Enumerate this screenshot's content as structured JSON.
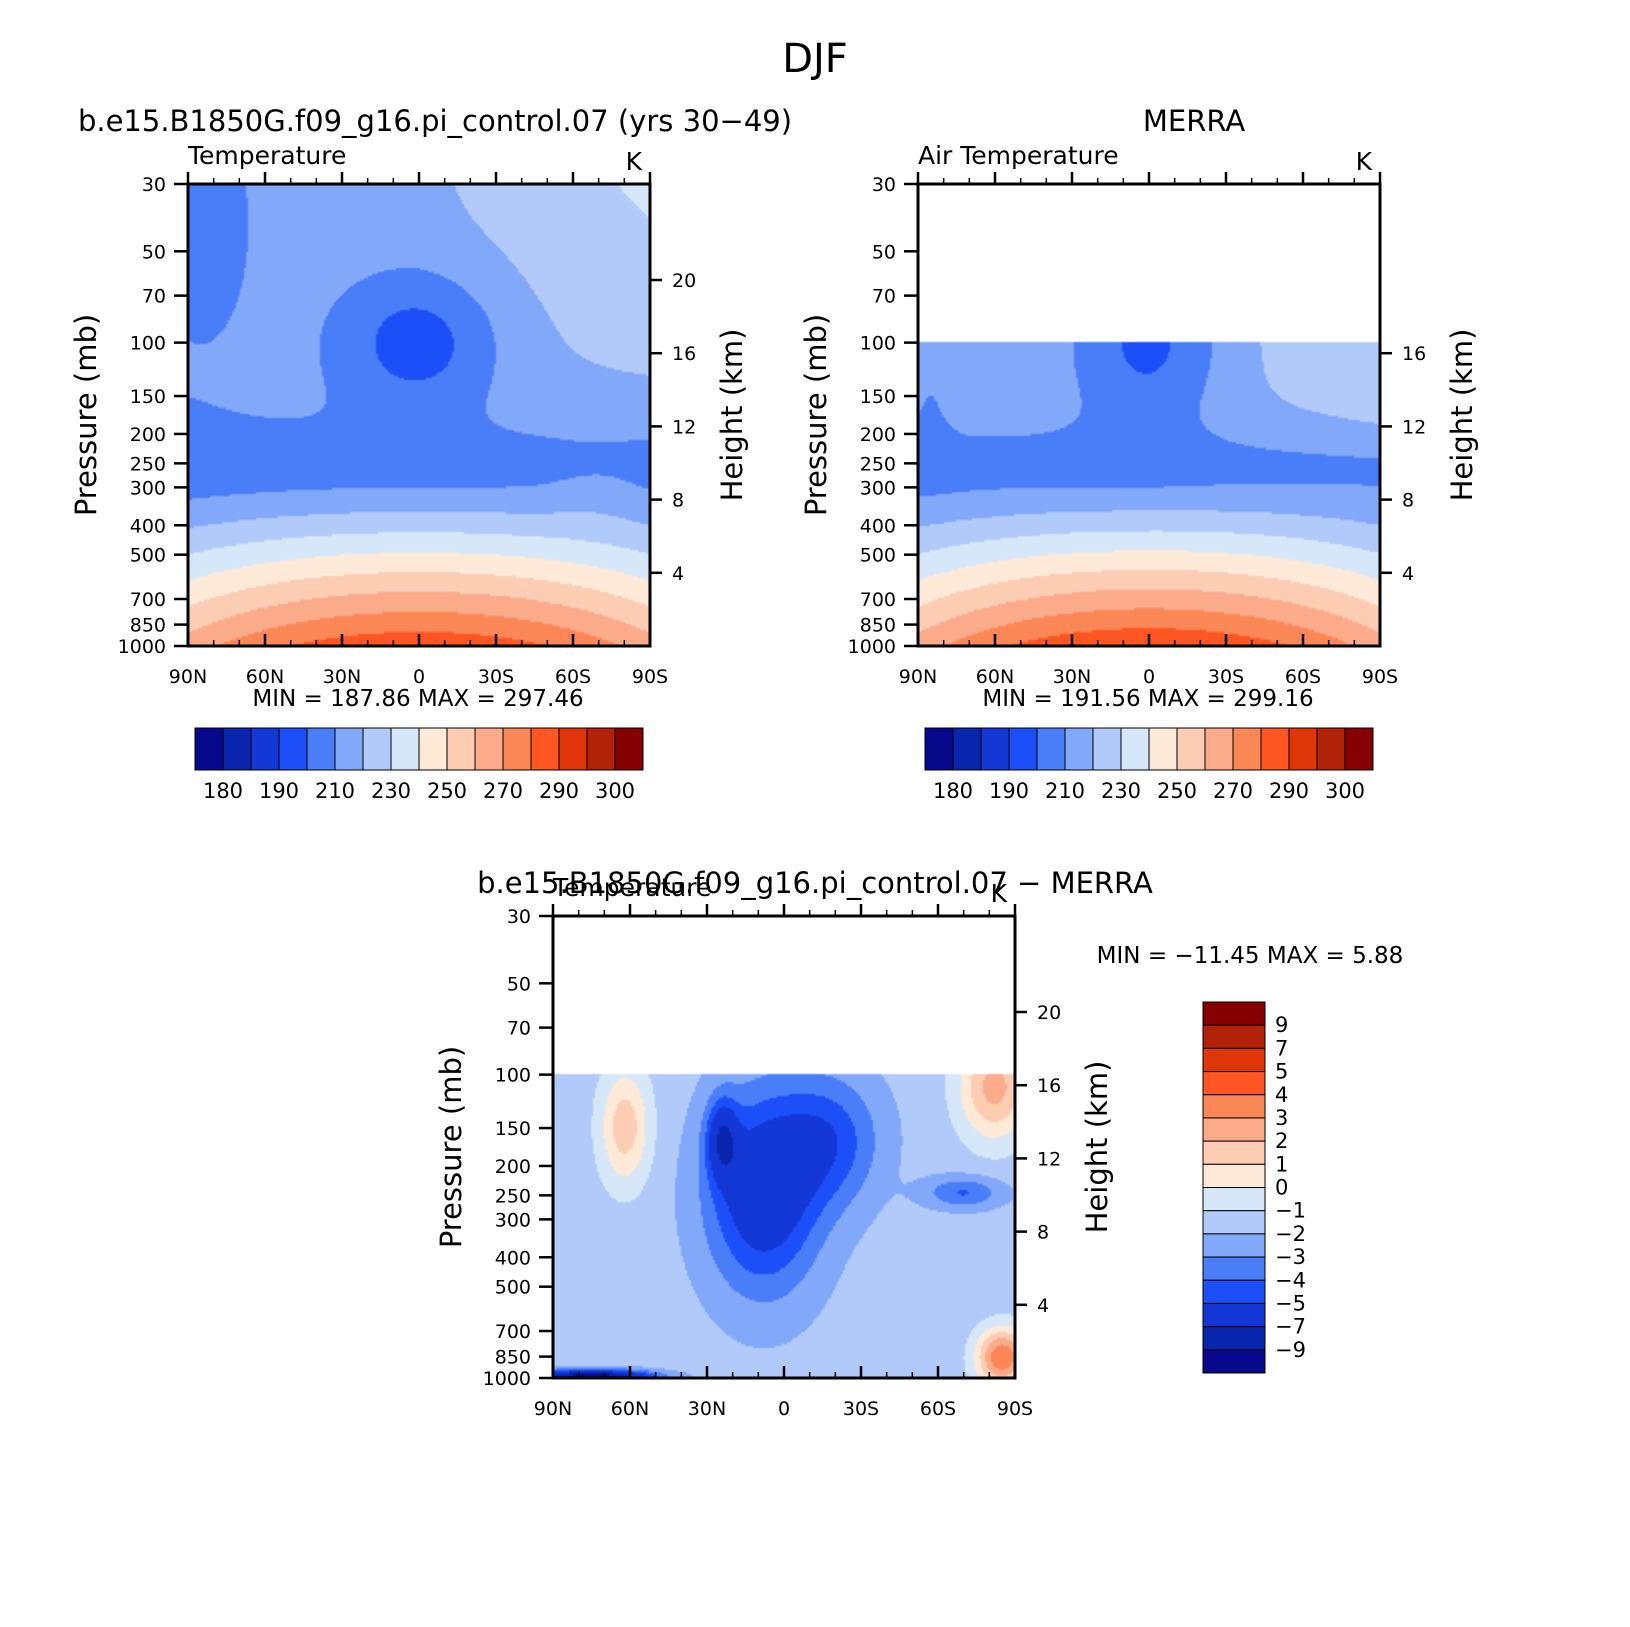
{
  "figure_title": "DJF",
  "color_palettes": {
    "abs": [
      "#08088c",
      "#0a25ad",
      "#1338d6",
      "#1d4ff8",
      "#4a7ef8",
      "#82a8fa",
      "#b2caf9",
      "#d5e7f8",
      "#fde9d8",
      "#fcccb3",
      "#fbab8a",
      "#fb8656",
      "#fe5622",
      "#df3609",
      "#b22208",
      "#850000"
    ],
    "diff": [
      "#08088c",
      "#0a25ad",
      "#1338d6",
      "#1d4ff8",
      "#4a7ef8",
      "#82a8fa",
      "#b2caf9",
      "#d5e7f8",
      "#fde9d8",
      "#fcccb3",
      "#fbab8a",
      "#fb8656",
      "#fe5622",
      "#df3609",
      "#b22208",
      "#850000"
    ]
  },
  "chart_data": [
    {
      "id": "model",
      "type": "heatmap",
      "title": "b.e15.B1850G.f09_g16.pi_control.07 (yrs 30−49)",
      "left_label": "Temperature",
      "right_label": "K",
      "xlabel": "",
      "ylabel": "Pressure (mb)",
      "y2label": "Height (km)",
      "x_ticks": [
        "90N",
        "60N",
        "30N",
        "0",
        "30S",
        "60S",
        "90S"
      ],
      "x_range": [
        -90,
        90
      ],
      "y_ticks": [
        "30",
        "50",
        "70",
        "100",
        "150",
        "200",
        "250",
        "300",
        "400",
        "500",
        "700",
        "850",
        "1000"
      ],
      "y_tick_values": [
        30,
        50,
        70,
        100,
        150,
        200,
        250,
        300,
        400,
        500,
        700,
        850,
        1000
      ],
      "ylim": [
        30,
        1000
      ],
      "y2_ticks": [
        "4",
        "8",
        "12",
        "16",
        "20"
      ],
      "y2_tick_values": [
        4,
        8,
        12,
        16,
        20
      ],
      "valid_top_hpa": 30,
      "stats": {
        "min_label": "MIN",
        "min": "187.86",
        "max_label": "MAX",
        "max": "297.46"
      },
      "levels": [
        180,
        185,
        190,
        200,
        210,
        220,
        230,
        240,
        250,
        260,
        270,
        280,
        290,
        295,
        300
      ],
      "colorbar_labels": [
        "180",
        "190",
        "210",
        "230",
        "250",
        "270",
        "290",
        "300"
      ],
      "field_model": "model",
      "palette": "abs"
    },
    {
      "id": "obs",
      "type": "heatmap",
      "title": "MERRA",
      "left_label": "Air Temperature",
      "right_label": "K",
      "xlabel": "",
      "ylabel": "Pressure (mb)",
      "y2label": "Height (km)",
      "x_ticks": [
        "90N",
        "60N",
        "30N",
        "0",
        "30S",
        "60S",
        "90S"
      ],
      "x_range": [
        -90,
        90
      ],
      "y_ticks": [
        "30",
        "50",
        "70",
        "100",
        "150",
        "200",
        "250",
        "300",
        "400",
        "500",
        "700",
        "850",
        "1000"
      ],
      "y_tick_values": [
        30,
        50,
        70,
        100,
        150,
        200,
        250,
        300,
        400,
        500,
        700,
        850,
        1000
      ],
      "ylim": [
        30,
        1000
      ],
      "y2_ticks": [
        "4",
        "8",
        "12",
        "16"
      ],
      "y2_tick_values": [
        4,
        8,
        12,
        16
      ],
      "valid_top_hpa": 100,
      "stats": {
        "min_label": "MIN",
        "min": "191.56",
        "max_label": "MAX",
        "max": "299.16"
      },
      "levels": [
        180,
        185,
        190,
        200,
        210,
        220,
        230,
        240,
        250,
        260,
        270,
        280,
        290,
        295,
        300
      ],
      "colorbar_labels": [
        "180",
        "190",
        "210",
        "230",
        "250",
        "270",
        "290",
        "300"
      ],
      "field_model": "obs",
      "palette": "abs"
    },
    {
      "id": "diff",
      "type": "heatmap",
      "title": "b.e15.B1850G.f09_g16.pi_control.07 − MERRA",
      "left_label": "Temperature",
      "right_label": "K",
      "xlabel": "",
      "ylabel": "Pressure (mb)",
      "y2label": "Height (km)",
      "x_ticks": [
        "90N",
        "60N",
        "30N",
        "0",
        "30S",
        "60S",
        "90S"
      ],
      "x_range": [
        -90,
        90
      ],
      "y_ticks": [
        "30",
        "50",
        "70",
        "100",
        "150",
        "200",
        "250",
        "300",
        "400",
        "500",
        "700",
        "850",
        "1000"
      ],
      "y_tick_values": [
        30,
        50,
        70,
        100,
        150,
        200,
        250,
        300,
        400,
        500,
        700,
        850,
        1000
      ],
      "ylim": [
        30,
        1000
      ],
      "y2_ticks": [
        "4",
        "8",
        "12",
        "16",
        "20"
      ],
      "y2_tick_values": [
        4,
        8,
        12,
        16,
        20
      ],
      "valid_top_hpa": 100,
      "stats": {
        "min_label": "MIN",
        "min": "−11.45",
        "max_label": "MAX",
        "max": "5.88"
      },
      "levels": [
        -9,
        -7,
        -5,
        -4,
        -3,
        -2,
        -1,
        0,
        1,
        2,
        3,
        4,
        5,
        7,
        9
      ],
      "colorbar_labels": [
        "9",
        "7",
        "5",
        "4",
        "3",
        "2",
        "1",
        "0",
        "−1",
        "−2",
        "−3",
        "−4",
        "−5",
        "−7",
        "−9"
      ],
      "field_model": "diff",
      "palette": "diff"
    }
  ]
}
